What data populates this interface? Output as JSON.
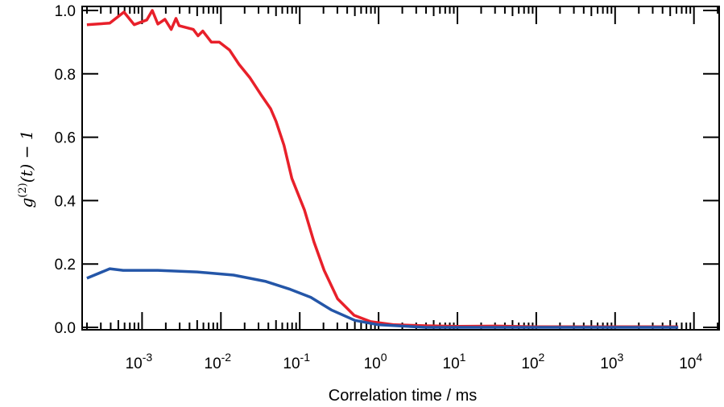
{
  "chart_data": {
    "type": "line",
    "title": "",
    "xlabel": "Correlation time / ms",
    "ylabel": "g(2)(t) − 1",
    "ylabel_parts": {
      "g": "g",
      "sup": "(2)",
      "rest": "(t) − 1"
    },
    "xscale": "log",
    "xlim_log10": [
      -3.76,
      4.32
    ],
    "ylim": [
      0,
      1.0
    ],
    "grid": false,
    "legend": "none",
    "yticks": [
      "0.0",
      "0.2",
      "0.4",
      "0.6",
      "0.8",
      "1.0"
    ],
    "xticks": [
      {
        "base": "10",
        "exp": "-3"
      },
      {
        "base": "10",
        "exp": "-2"
      },
      {
        "base": "10",
        "exp": "-1"
      },
      {
        "base": "10",
        "exp": "0"
      },
      {
        "base": "10",
        "exp": "1"
      },
      {
        "base": "10",
        "exp": "2"
      },
      {
        "base": "10",
        "exp": "3"
      },
      {
        "base": "10",
        "exp": "4"
      }
    ],
    "series": [
      {
        "name": "red",
        "color": "#e8202a",
        "log10_x": [
          -3.7,
          -3.41,
          -3.23,
          -3.1,
          -2.94,
          -2.87,
          -2.8,
          -2.71,
          -2.63,
          -2.57,
          -2.53,
          -2.35,
          -2.29,
          -2.23,
          -2.12,
          -2.02,
          -1.89,
          -1.77,
          -1.63,
          -1.48,
          -1.37,
          -1.3,
          -1.2,
          -1.1,
          -0.94,
          -0.82,
          -0.69,
          -0.52,
          -0.31,
          -0.1,
          0.2,
          0.6,
          1.0,
          1.5,
          2.0,
          2.5,
          3.0,
          3.5,
          3.8
        ],
        "y": [
          0.955,
          0.96,
          0.995,
          0.955,
          0.97,
          1.0,
          0.957,
          0.972,
          0.94,
          0.975,
          0.952,
          0.94,
          0.92,
          0.935,
          0.9,
          0.9,
          0.875,
          0.83,
          0.787,
          0.73,
          0.69,
          0.65,
          0.575,
          0.47,
          0.37,
          0.27,
          0.18,
          0.09,
          0.038,
          0.018,
          0.008,
          0.005,
          0.003,
          0.004,
          0.002,
          0.002,
          0.002,
          0.002,
          0.002
        ]
      },
      {
        "name": "blue",
        "color": "#2456a8",
        "log10_x": [
          -3.7,
          -3.41,
          -3.24,
          -2.8,
          -2.3,
          -1.84,
          -1.43,
          -1.12,
          -0.86,
          -0.6,
          -0.3,
          0.0,
          0.6,
          1.5,
          2.5,
          3.8
        ],
        "y": [
          0.155,
          0.185,
          0.18,
          0.18,
          0.175,
          0.165,
          0.145,
          0.12,
          0.095,
          0.055,
          0.022,
          0.008,
          0.0,
          0.0,
          0.0,
          0.0
        ]
      }
    ]
  }
}
